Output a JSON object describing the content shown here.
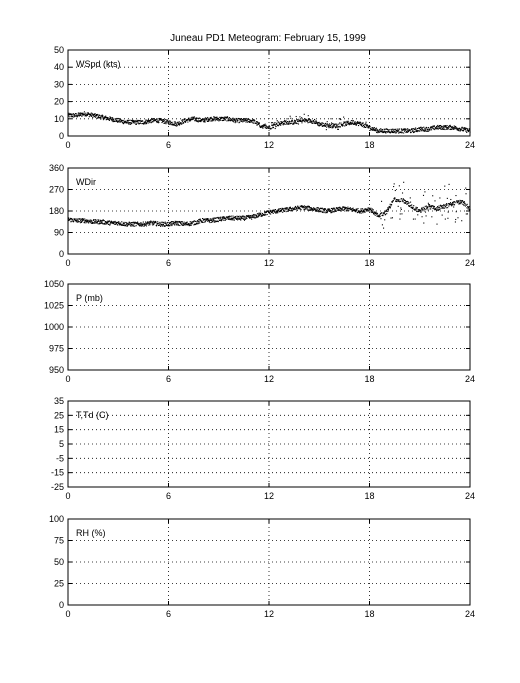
{
  "title": "Juneau PD1 Meteogram:  February 15, 1999",
  "chart_data": [
    {
      "type": "scatter",
      "label": "WSpd (kts)",
      "xlim": [
        0,
        24
      ],
      "xticks": [
        0,
        6,
        12,
        18,
        24
      ],
      "ylim": [
        0,
        50
      ],
      "yticks": [
        0,
        10,
        20,
        30,
        40,
        50
      ],
      "grid": true,
      "series_color": "#000000",
      "trend": [
        [
          0,
          12
        ],
        [
          0.5,
          12
        ],
        [
          1,
          13
        ],
        [
          1.5,
          12
        ],
        [
          2,
          11
        ],
        [
          2.5,
          10
        ],
        [
          3,
          9
        ],
        [
          3.5,
          8
        ],
        [
          4,
          8
        ],
        [
          4.5,
          8
        ],
        [
          5,
          9
        ],
        [
          5.5,
          9
        ],
        [
          6,
          8
        ],
        [
          6.5,
          7
        ],
        [
          7,
          9
        ],
        [
          7.5,
          10
        ],
        [
          8,
          9
        ],
        [
          8.5,
          10
        ],
        [
          9,
          10
        ],
        [
          9.5,
          10
        ],
        [
          10,
          9
        ],
        [
          10.5,
          9
        ],
        [
          11,
          9
        ],
        [
          11.5,
          6
        ],
        [
          12,
          5
        ],
        [
          12.5,
          7
        ],
        [
          13,
          8
        ],
        [
          13.5,
          8
        ],
        [
          14,
          9
        ],
        [
          14.5,
          9
        ],
        [
          15,
          7
        ],
        [
          15.5,
          6
        ],
        [
          16,
          6
        ],
        [
          16.5,
          7
        ],
        [
          17,
          8
        ],
        [
          17.5,
          7
        ],
        [
          18,
          5
        ],
        [
          18.5,
          3
        ],
        [
          19,
          3
        ],
        [
          19.5,
          3
        ],
        [
          20,
          3
        ],
        [
          20.5,
          3
        ],
        [
          21,
          4
        ],
        [
          21.5,
          4
        ],
        [
          22,
          5
        ],
        [
          22.5,
          5
        ],
        [
          23,
          5
        ],
        [
          23.5,
          4
        ],
        [
          24,
          3
        ]
      ]
    },
    {
      "type": "scatter",
      "label": "WDir",
      "xlim": [
        0,
        24
      ],
      "xticks": [
        0,
        6,
        12,
        18,
        24
      ],
      "ylim": [
        0,
        360
      ],
      "yticks": [
        0,
        90,
        180,
        270,
        360
      ],
      "grid": true,
      "series_color": "#000000",
      "trend": [
        [
          0,
          145
        ],
        [
          0.5,
          140
        ],
        [
          1,
          140
        ],
        [
          1.5,
          135
        ],
        [
          2,
          135
        ],
        [
          2.5,
          130
        ],
        [
          3,
          130
        ],
        [
          3.5,
          125
        ],
        [
          4,
          125
        ],
        [
          4.5,
          125
        ],
        [
          5,
          130
        ],
        [
          5.5,
          125
        ],
        [
          6,
          125
        ],
        [
          6.5,
          130
        ],
        [
          7,
          125
        ],
        [
          7.5,
          130
        ],
        [
          8,
          140
        ],
        [
          8.5,
          140
        ],
        [
          9,
          145
        ],
        [
          9.5,
          150
        ],
        [
          10,
          150
        ],
        [
          10.5,
          150
        ],
        [
          11,
          155
        ],
        [
          11.5,
          165
        ],
        [
          12,
          175
        ],
        [
          12.5,
          180
        ],
        [
          13,
          185
        ],
        [
          13.5,
          190
        ],
        [
          14,
          195
        ],
        [
          14.5,
          190
        ],
        [
          15,
          185
        ],
        [
          15.5,
          180
        ],
        [
          16,
          185
        ],
        [
          16.5,
          190
        ],
        [
          17,
          185
        ],
        [
          17.5,
          180
        ],
        [
          18,
          190
        ],
        [
          18.5,
          160
        ],
        [
          19,
          175
        ],
        [
          19.5,
          230
        ],
        [
          20,
          225
        ],
        [
          20.5,
          200
        ],
        [
          21,
          180
        ],
        [
          21.5,
          200
        ],
        [
          22,
          190
        ],
        [
          22.5,
          200
        ],
        [
          23,
          210
        ],
        [
          23.5,
          220
        ],
        [
          24,
          190
        ]
      ]
    },
    {
      "type": "scatter",
      "label": "P (mb)",
      "xlim": [
        0,
        24
      ],
      "xticks": [
        0,
        6,
        12,
        18,
        24
      ],
      "ylim": [
        950,
        1050
      ],
      "yticks": [
        950,
        975,
        1000,
        1025,
        1050
      ],
      "grid": true,
      "trend": []
    },
    {
      "type": "scatter",
      "label": "T,Td (C)",
      "xlim": [
        0,
        24
      ],
      "xticks": [
        0,
        6,
        12,
        18,
        24
      ],
      "ylim": [
        -25,
        35
      ],
      "yticks": [
        -25,
        -15,
        -5,
        5,
        15,
        25,
        35
      ],
      "grid": true,
      "trend": []
    },
    {
      "type": "scatter",
      "label": "RH (%)",
      "xlim": [
        0,
        24
      ],
      "xticks": [
        0,
        6,
        12,
        18,
        24
      ],
      "ylim": [
        0,
        100
      ],
      "yticks": [
        0,
        25,
        50,
        75,
        100
      ],
      "grid": true,
      "trend": []
    }
  ]
}
